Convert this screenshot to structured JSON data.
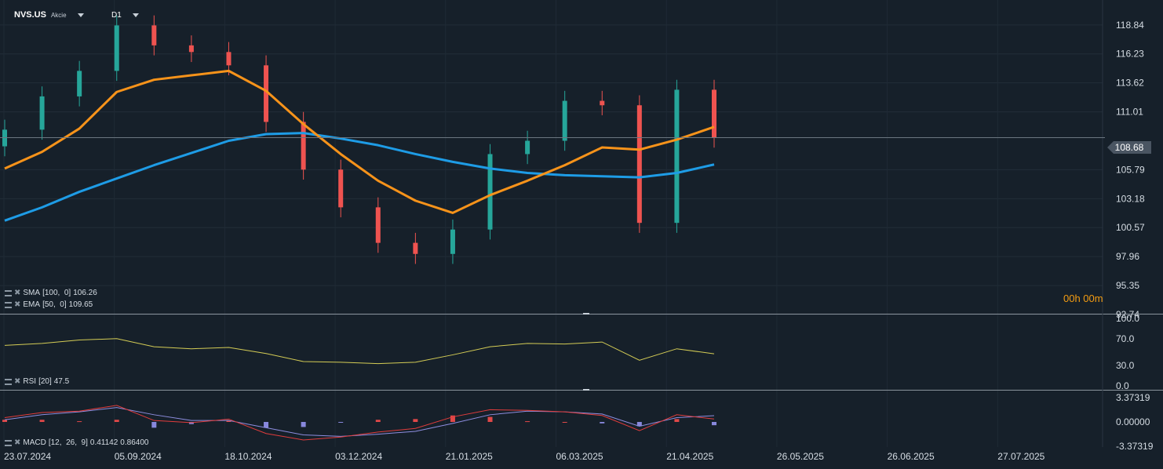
{
  "header": {
    "symbol": "NVS.US",
    "type": "Akcie",
    "timeframe": "D1"
  },
  "current_price": "108.68",
  "timer": "00h 00m",
  "price_axis": [
    "118.84",
    "116.23",
    "113.62",
    "111.01",
    "105.79",
    "103.18",
    "100.57",
    "97.96",
    "95.35",
    "92.74"
  ],
  "date_axis": [
    "23.07.2024",
    "05.09.2024",
    "18.10.2024",
    "03.12.2024",
    "21.01.2025",
    "06.03.2025",
    "21.04.2025",
    "26.05.2025",
    "26.06.2025",
    "27.07.2025"
  ],
  "indicators": {
    "sma": {
      "name": "SMA",
      "params": "[100,  0]",
      "value": "106.26"
    },
    "ema": {
      "name": "EMA",
      "params": "[50,  0]",
      "value": "109.65"
    },
    "rsi": {
      "name": "RSI",
      "params": "[20]",
      "value": "47.5",
      "axis": [
        "100.0",
        "70.0",
        "30.0",
        "0.0"
      ]
    },
    "macd": {
      "name": "MACD",
      "params": "[12,  26,  9]",
      "value1": "0.41142",
      "value2": "0.86400",
      "axis": [
        "3.37319",
        "0.00000",
        "-3.37319"
      ]
    }
  },
  "colors": {
    "background": "#16202a",
    "up": "#26a69a",
    "down": "#ef5350",
    "sma": "#1e9ce6",
    "ema": "#f7931a",
    "rsi": "#d4cc55",
    "macd": "#e03c3c",
    "signal": "#8e8ee0",
    "hist_pos": "#e04848",
    "hist_neg": "#8888dd"
  },
  "chart_data": {
    "type": "candlestick",
    "title": "NVS.US",
    "xlabel": "",
    "ylabel": "",
    "ylim": [
      92.74,
      120.1
    ],
    "x": [
      "2024-07-23",
      "2024-08-06",
      "2024-08-20",
      "2024-09-05",
      "2024-09-19",
      "2024-10-03",
      "2024-10-18",
      "2024-11-01",
      "2024-11-15",
      "2024-12-03",
      "2024-12-17",
      "2025-01-03",
      "2025-01-21",
      "2025-02-04",
      "2025-02-18",
      "2025-03-06",
      "2025-03-20",
      "2025-04-03",
      "2025-04-21",
      "2025-05-02"
    ],
    "close": [
      109.4,
      112.4,
      114.7,
      118.8,
      117.0,
      116.4,
      115.2,
      110.1,
      105.8,
      102.4,
      99.2,
      98.2,
      100.4,
      107.2,
      108.4,
      112.0,
      111.6,
      101.0,
      113.0,
      108.68
    ],
    "series": [
      {
        "name": "SMA",
        "values": [
          101.2,
          102.4,
          103.8,
          105.0,
          106.2,
          107.3,
          108.4,
          109.0,
          109.1,
          108.6,
          108.0,
          107.2,
          106.5,
          105.9,
          105.5,
          105.3,
          105.2,
          105.1,
          105.5,
          106.26
        ]
      },
      {
        "name": "EMA",
        "values": [
          105.9,
          107.4,
          109.5,
          112.8,
          113.9,
          114.3,
          114.7,
          112.9,
          109.9,
          107.2,
          104.8,
          103.0,
          101.9,
          103.5,
          104.8,
          106.2,
          107.8,
          107.6,
          108.5,
          109.65
        ]
      }
    ],
    "rsi": {
      "ylim": [
        0,
        100
      ],
      "values": [
        60,
        63,
        68,
        70,
        58,
        55,
        57,
        48,
        36,
        35,
        33,
        35,
        46,
        58,
        63,
        62,
        65,
        38,
        55,
        47.5
      ]
    },
    "macd": {
      "ylim": [
        -3.37319,
        3.37319
      ],
      "macd": [
        0.6,
        1.3,
        1.5,
        2.3,
        0.2,
        -0.1,
        0.4,
        -1.6,
        -2.5,
        -2.1,
        -1.4,
        -0.9,
        0.7,
        1.7,
        1.6,
        1.4,
        0.9,
        -1.2,
        1.0,
        0.41142
      ],
      "signal": [
        0.3,
        1.0,
        1.4,
        2.0,
        1.0,
        0.2,
        0.2,
        -0.8,
        -1.8,
        -2.0,
        -1.7,
        -1.3,
        -0.2,
        1.0,
        1.5,
        1.4,
        1.1,
        -0.6,
        0.6,
        0.864
      ]
    }
  }
}
